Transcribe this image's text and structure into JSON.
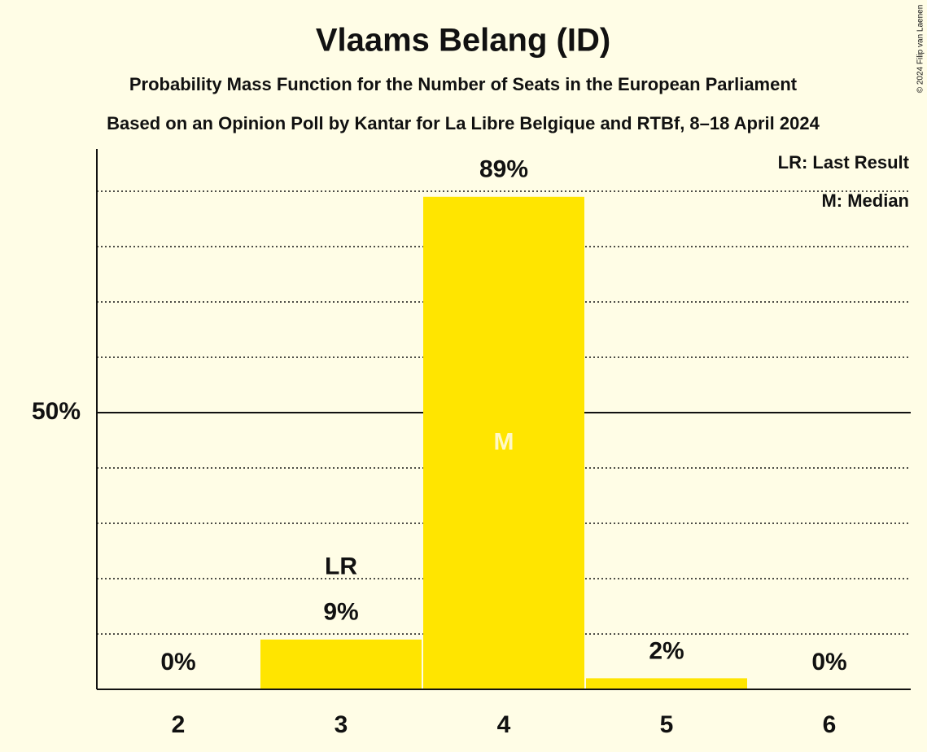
{
  "chart_data": {
    "type": "bar",
    "title": "Vlaams Belang (ID)",
    "subtitle": "Probability Mass Function for the Number of Seats in the European Parliament",
    "subtitle2": "Based on an Opinion Poll by Kantar for La Libre Belgique and RTBf, 8–18 April 2024",
    "copyright": "© 2024 Filip van Laenen",
    "categories": [
      "2",
      "3",
      "4",
      "5",
      "6"
    ],
    "values": [
      0,
      9,
      89,
      2,
      0
    ],
    "value_labels": [
      "0%",
      "9%",
      "89%",
      "2%",
      "0%"
    ],
    "color": "#ffe500",
    "ylim": [
      0,
      100
    ],
    "yticks": [
      {
        "value": 50,
        "label": "50%"
      }
    ],
    "minor_yticks": [
      10,
      20,
      30,
      40,
      60,
      70,
      80,
      90
    ],
    "annotations": [
      {
        "category": "3",
        "label": "LR"
      },
      {
        "category": "4",
        "label": "M"
      }
    ],
    "legend_notes": [
      "LR: Last Result",
      "M: Median"
    ]
  }
}
